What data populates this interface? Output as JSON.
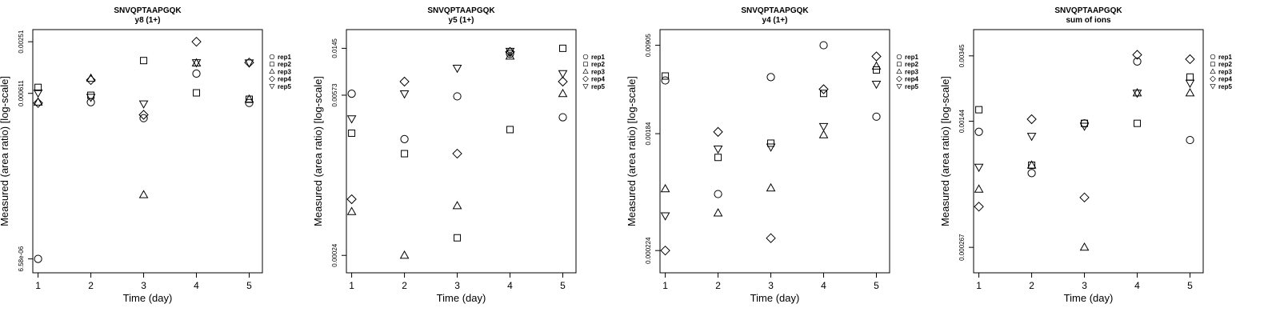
{
  "chart_data": [
    {
      "type": "scatter",
      "title": "SNVQPTAAPGQK",
      "subtitle": "y8 (1+)",
      "xlabel": "Time (day)",
      "ylabel": "Measured (area ratio) [log-scale]",
      "log_y": true,
      "x_ticks": [
        1,
        2,
        3,
        4,
        5
      ],
      "y_ticks": [
        6.58e-06,
        0.000611,
        0.00251
      ],
      "y_tick_labels": [
        "6.58e-06",
        "0.000611",
        "0.00251"
      ],
      "ylim": [
        4.5e-06,
        0.0035
      ],
      "legend_position": "right",
      "series": [
        {
          "name": "rep1",
          "marker": "circle",
          "x": [
            1,
            2,
            3,
            4,
            5
          ],
          "y": [
            6.58e-06,
            0.00048,
            0.00031,
            0.00105,
            0.00047
          ]
        },
        {
          "name": "rep2",
          "marker": "square",
          "x": [
            1,
            2,
            3,
            4,
            5
          ],
          "y": [
            0.00072,
            0.00058,
            0.0015,
            0.00062,
            0.00052
          ]
        },
        {
          "name": "rep3",
          "marker": "triangle-up",
          "x": [
            1,
            2,
            3,
            4,
            5
          ],
          "y": [
            0.00048,
            0.00092,
            3.8e-05,
            0.0014,
            0.00052
          ]
        },
        {
          "name": "rep4",
          "marker": "diamond",
          "x": [
            1,
            2,
            3,
            4,
            5
          ],
          "y": [
            0.00047,
            0.00088,
            0.00034,
            0.00251,
            0.00142
          ]
        },
        {
          "name": "rep5",
          "marker": "triangle-down",
          "x": [
            1,
            2,
            3,
            4,
            5
          ],
          "y": [
            0.00062,
            0.00055,
            0.00046,
            0.00142,
            0.00141
          ]
        }
      ]
    },
    {
      "type": "scatter",
      "title": "SNVQPTAAPGQK",
      "subtitle": "y5 (1+)",
      "xlabel": "Time (day)",
      "ylabel": "Measured (area ratio) [log-scale]",
      "log_y": true,
      "x_ticks": [
        1,
        2,
        3,
        4,
        5
      ],
      "y_ticks": [
        0.00024,
        0.00573,
        0.0145
      ],
      "y_tick_labels": [
        "0.00024",
        "0.00573",
        "0.0145"
      ],
      "ylim": [
        0.00017,
        0.021
      ],
      "legend_position": "right",
      "series": [
        {
          "name": "rep1",
          "marker": "circle",
          "x": [
            1,
            2,
            3,
            4,
            5
          ],
          "y": [
            0.0059,
            0.0024,
            0.0056,
            0.013,
            0.0037
          ]
        },
        {
          "name": "rep2",
          "marker": "square",
          "x": [
            1,
            2,
            3,
            4,
            5
          ],
          "y": [
            0.0027,
            0.0018,
            0.00034,
            0.0029,
            0.0145
          ]
        },
        {
          "name": "rep3",
          "marker": "triangle-up",
          "x": [
            1,
            2,
            3,
            4,
            5
          ],
          "y": [
            0.00057,
            0.00024,
            0.00064,
            0.0124,
            0.0059
          ]
        },
        {
          "name": "rep4",
          "marker": "diamond",
          "x": [
            1,
            2,
            3,
            4,
            5
          ],
          "y": [
            0.00073,
            0.0075,
            0.0018,
            0.0135,
            0.0075
          ]
        },
        {
          "name": "rep5",
          "marker": "triangle-down",
          "x": [
            1,
            2,
            3,
            4,
            5
          ],
          "y": [
            0.0036,
            0.0059,
            0.0098,
            0.0137,
            0.0088
          ]
        }
      ]
    },
    {
      "type": "scatter",
      "title": "SNVQPTAAPGQK",
      "subtitle": "y4 (1+)",
      "xlabel": "Time (day)",
      "ylabel": "Measured (area ratio) [log-scale]",
      "log_y": true,
      "x_ticks": [
        1,
        2,
        3,
        4,
        5
      ],
      "y_ticks": [
        0.000224,
        0.00184,
        0.00905
      ],
      "y_tick_labels": [
        "0.000224",
        "0.00184",
        "0.00905"
      ],
      "ylim": [
        0.00015,
        0.012
      ],
      "legend_position": "right",
      "series": [
        {
          "name": "rep1",
          "marker": "circle",
          "x": [
            1,
            2,
            3,
            4,
            5
          ],
          "y": [
            0.0048,
            0.00062,
            0.0051,
            0.00905,
            0.0025
          ]
        },
        {
          "name": "rep2",
          "marker": "square",
          "x": [
            1,
            2,
            3,
            4,
            5
          ],
          "y": [
            0.0052,
            0.0012,
            0.00155,
            0.0038,
            0.0058
          ]
        },
        {
          "name": "rep3",
          "marker": "triangle-up",
          "x": [
            1,
            2,
            3,
            4,
            5
          ],
          "y": [
            0.00068,
            0.00044,
            0.00069,
            0.0018,
            0.0062
          ]
        },
        {
          "name": "rep4",
          "marker": "diamond",
          "x": [
            1,
            2,
            3,
            4,
            5
          ],
          "y": [
            0.000224,
            0.0019,
            0.00028,
            0.0041,
            0.0074
          ]
        },
        {
          "name": "rep5",
          "marker": "triangle-down",
          "x": [
            1,
            2,
            3,
            4,
            5
          ],
          "y": [
            0.00042,
            0.0014,
            0.00145,
            0.0021,
            0.0045
          ]
        }
      ]
    },
    {
      "type": "scatter",
      "title": "SNVQPTAAPGQK",
      "subtitle": "sum of ions",
      "xlabel": "Time (day)",
      "ylabel": "Measured (area ratio) [log-scale]",
      "log_y": true,
      "x_ticks": [
        1,
        2,
        3,
        4,
        5
      ],
      "y_ticks": [
        0.000267,
        0.00144,
        0.00345
      ],
      "y_tick_labels": [
        "0.000267",
        "0.00144",
        "0.00345"
      ],
      "ylim": [
        0.00019,
        0.0049
      ],
      "legend_position": "right",
      "series": [
        {
          "name": "rep1",
          "marker": "circle",
          "x": [
            1,
            2,
            3,
            4,
            5
          ],
          "y": [
            0.00125,
            0.00072,
            0.0014,
            0.0032,
            0.00112
          ]
        },
        {
          "name": "rep2",
          "marker": "square",
          "x": [
            1,
            2,
            3,
            4,
            5
          ],
          "y": [
            0.00168,
            0.0008,
            0.0014,
            0.0014,
            0.0026
          ]
        },
        {
          "name": "rep3",
          "marker": "triangle-up",
          "x": [
            1,
            2,
            3,
            4,
            5
          ],
          "y": [
            0.00058,
            0.0008,
            0.000267,
            0.0021,
            0.0021
          ]
        },
        {
          "name": "rep4",
          "marker": "diamond",
          "x": [
            1,
            2,
            3,
            4,
            5
          ],
          "y": [
            0.00046,
            0.00148,
            0.00052,
            0.0035,
            0.0033
          ]
        },
        {
          "name": "rep5",
          "marker": "triangle-down",
          "x": [
            1,
            2,
            3,
            4,
            5
          ],
          "y": [
            0.00078,
            0.00118,
            0.00135,
            0.0021,
            0.0024
          ]
        }
      ]
    }
  ]
}
